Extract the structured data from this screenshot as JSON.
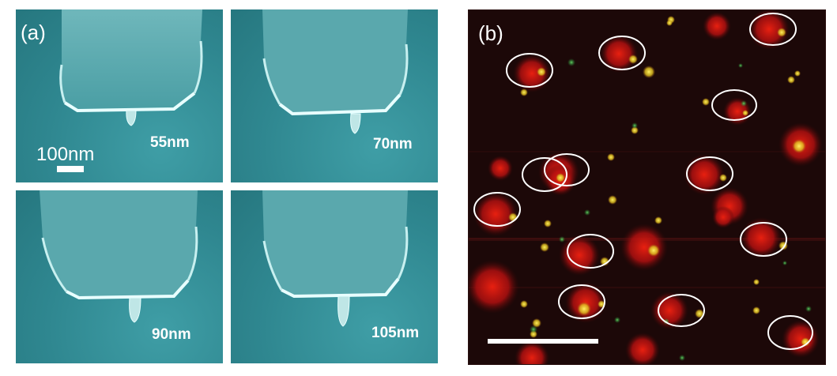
{
  "panel_a": {
    "letter": "(a)",
    "scale_label": "100nm",
    "images": [
      {
        "label": "55nm"
      },
      {
        "label": "70nm"
      },
      {
        "label": "90nm"
      },
      {
        "label": "105nm"
      }
    ]
  },
  "panel_b": {
    "letter": "(b)"
  },
  "colors": {
    "sem_background": "#2f8790",
    "fluorescence_background": "#1c0808",
    "spot_red": "#d01010",
    "spot_yellow": "#f0e030",
    "spot_green": "#30b040",
    "circle": "#ffffff"
  }
}
